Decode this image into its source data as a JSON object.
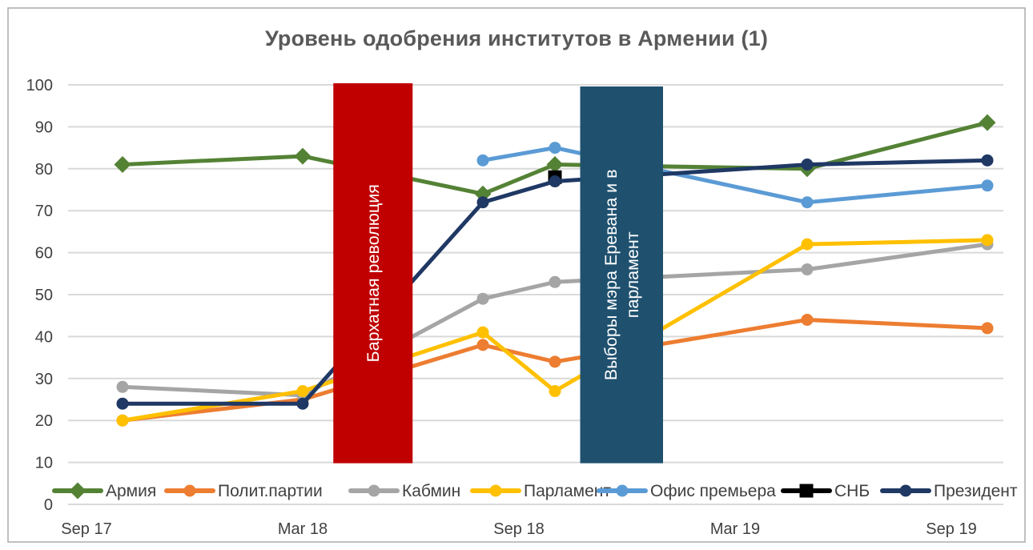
{
  "chart_data": {
    "type": "line",
    "title": "Уровень одобрения институтов в Армении (1)",
    "y_axis": {
      "min": 0,
      "max": 100,
      "step": 10,
      "tick_labels": [
        "0",
        "10",
        "20",
        "30",
        "40",
        "50",
        "60",
        "70",
        "80",
        "90",
        "100"
      ]
    },
    "x_axis": {
      "tick_labels": [
        "Sep 17",
        "Mar 18",
        "Sep 18",
        "Mar 19",
        "Sep 19"
      ],
      "tick_month_offsets": [
        0,
        6,
        12,
        18,
        24
      ]
    },
    "grid": true,
    "legend_position": "bottom",
    "series": [
      {
        "name": "Армия",
        "color": "#548235",
        "marker": "diamond",
        "points": [
          [
            1,
            81
          ],
          [
            6,
            83
          ],
          [
            11,
            74
          ],
          [
            13,
            81
          ],
          [
            20,
            80
          ],
          [
            25,
            91
          ]
        ]
      },
      {
        "name": "Полит.партии",
        "color": "#ED7D31",
        "marker": "circle",
        "points": [
          [
            1,
            20
          ],
          [
            6,
            25
          ],
          [
            11,
            38
          ],
          [
            13,
            34
          ],
          [
            20,
            44
          ],
          [
            25,
            42
          ]
        ]
      },
      {
        "name": "Кабмин",
        "color": "#A5A5A5",
        "marker": "circle",
        "points": [
          [
            1,
            28
          ],
          [
            6,
            26
          ],
          [
            11,
            49
          ],
          [
            13,
            53
          ],
          [
            20,
            56
          ],
          [
            25,
            62
          ]
        ]
      },
      {
        "name": "Парламент",
        "color": "#FFC000",
        "marker": "circle",
        "points": [
          [
            1,
            20
          ],
          [
            6,
            27
          ],
          [
            11,
            41
          ],
          [
            13,
            27
          ],
          [
            20,
            62
          ],
          [
            25,
            63
          ]
        ]
      },
      {
        "name": "Офис премьера",
        "color": "#5B9BD5",
        "marker": "circle",
        "points": [
          [
            11,
            82
          ],
          [
            13,
            85
          ],
          [
            20,
            72
          ],
          [
            25,
            76
          ]
        ]
      },
      {
        "name": "СНБ",
        "color": "#000000",
        "marker": "square",
        "points": [
          [
            13,
            78
          ]
        ]
      },
      {
        "name": "Президент",
        "color": "#1F3864",
        "marker": "circle",
        "points": [
          [
            1,
            24
          ],
          [
            6,
            24
          ],
          [
            11,
            72
          ],
          [
            13,
            77
          ],
          [
            20,
            81
          ],
          [
            25,
            82
          ]
        ]
      }
    ],
    "event_bands": [
      {
        "label_lines": [
          "Бархатная революция"
        ],
        "color": "#C00000",
        "from_month": 6.85,
        "to_month": 9.05
      },
      {
        "label_lines": [
          "Выборы мэра Еревана и в",
          "парламент"
        ],
        "color": "#1F516F",
        "from_month": 13.7,
        "to_month": 16.0
      }
    ]
  },
  "colors": {
    "title": "#595959",
    "axis_text": "#404040",
    "legend_text": "#404040",
    "gridline": "#D9D9D9",
    "band_label_text": "#FFFFFF",
    "chart_border": "#ABABAB",
    "background": "#FFFFFF"
  }
}
